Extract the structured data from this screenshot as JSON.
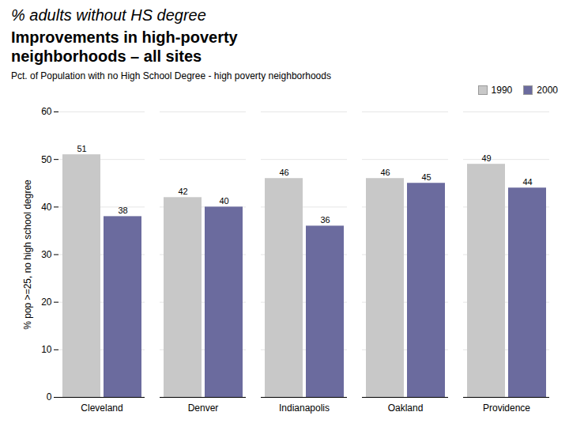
{
  "chart_data": {
    "type": "bar",
    "title": "% adults without HS degree",
    "subtitle": "Improvements in high-poverty\nneighborhoods – all sites",
    "annotations": [
      "Pct. of Population with no High School Degree - high poverty neighborhoods"
    ],
    "categories": [
      "Cleveland",
      "Denver",
      "Indianapolis",
      "Oakland",
      "Providence"
    ],
    "series": [
      {
        "name": "1990",
        "color": "#c8c8c8",
        "values": [
          51,
          42,
          46,
          46,
          49
        ]
      },
      {
        "name": "2000",
        "color": "#6b6b9e",
        "values": [
          38,
          40,
          36,
          45,
          44
        ]
      }
    ],
    "ylabel": "% pop >=25, no high school degree",
    "ylim": [
      0,
      60
    ],
    "yticks": [
      0,
      10,
      20,
      30,
      40,
      50,
      60
    ],
    "grid": true,
    "legend": "upper right",
    "data_labels": true
  }
}
